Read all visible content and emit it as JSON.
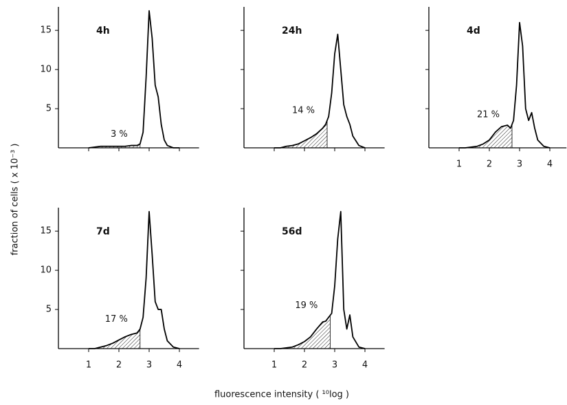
{
  "figure": {
    "y_label": "fraction of cells ( x 10⁻³ )",
    "x_label": "fluorescence intensity ( ¹⁰log )"
  },
  "chart_data": [
    {
      "type": "line",
      "title": "4h",
      "color": "#000000",
      "x": [
        1.0,
        1.2,
        1.4,
        1.6,
        1.8,
        2.0,
        2.2,
        2.4,
        2.6,
        2.7,
        2.8,
        2.9,
        3.0,
        3.1,
        3.2,
        3.3,
        3.4,
        3.5,
        3.6,
        3.8,
        4.0
      ],
      "values": [
        0,
        0.1,
        0.2,
        0.2,
        0.2,
        0.2,
        0.2,
        0.3,
        0.3,
        0.5,
        2,
        9,
        17.5,
        14,
        8,
        6.5,
        3,
        1,
        0.3,
        0,
        0
      ],
      "shaded": {
        "label": "3 %",
        "x_max": 2.7
      },
      "xlim": [
        0,
        4.65
      ],
      "ylim": [
        0,
        18
      ],
      "xticks": [
        1,
        2,
        3,
        4
      ],
      "yticks": [
        5,
        10,
        15
      ],
      "x_tick_labels": false,
      "y_tick_labels": true
    },
    {
      "type": "line",
      "title": "24h",
      "color": "#000000",
      "x": [
        1.0,
        1.2,
        1.4,
        1.6,
        1.8,
        2.0,
        2.2,
        2.4,
        2.6,
        2.7,
        2.8,
        2.9,
        3.0,
        3.1,
        3.2,
        3.3,
        3.4,
        3.5,
        3.6,
        3.8,
        4.0
      ],
      "values": [
        0,
        0,
        0.2,
        0.3,
        0.5,
        0.9,
        1.3,
        1.8,
        2.5,
        3,
        4,
        7,
        12,
        14.5,
        10,
        5.5,
        4,
        3,
        1.5,
        0.3,
        0
      ],
      "shaded": {
        "label": "14 %",
        "x_max": 2.75
      },
      "xlim": [
        0,
        4.65
      ],
      "ylim": [
        0,
        18
      ],
      "xticks": [
        1,
        2,
        3,
        4
      ],
      "yticks": [
        5,
        10,
        15
      ],
      "x_tick_labels": false,
      "y_tick_labels": false
    },
    {
      "type": "line",
      "title": "4d",
      "color": "#000000",
      "x": [
        1.0,
        1.2,
        1.4,
        1.6,
        1.8,
        2.0,
        2.2,
        2.4,
        2.6,
        2.7,
        2.8,
        2.9,
        3.0,
        3.1,
        3.2,
        3.3,
        3.4,
        3.5,
        3.6,
        3.8,
        4.0
      ],
      "values": [
        0,
        0,
        0.1,
        0.2,
        0.5,
        1.0,
        2.0,
        2.7,
        2.9,
        2.5,
        3.5,
        8,
        16,
        13,
        5,
        3.5,
        4.5,
        2.5,
        1,
        0.2,
        0
      ],
      "shaded": {
        "label": "21 %",
        "x_max": 2.75
      },
      "xlim": [
        0,
        4.55
      ],
      "ylim": [
        0,
        18
      ],
      "xticks": [
        1,
        2,
        3,
        4
      ],
      "yticks": [
        5,
        10,
        15
      ],
      "x_tick_labels": true,
      "y_tick_labels": false
    },
    {
      "type": "line",
      "title": "7d",
      "color": "#000000",
      "x": [
        1.0,
        1.2,
        1.4,
        1.6,
        1.8,
        2.0,
        2.2,
        2.4,
        2.6,
        2.7,
        2.8,
        2.9,
        3.0,
        3.1,
        3.2,
        3.3,
        3.4,
        3.5,
        3.6,
        3.8,
        4.0
      ],
      "values": [
        0,
        0,
        0.2,
        0.4,
        0.7,
        1.1,
        1.5,
        1.8,
        2.0,
        2.5,
        4,
        9,
        17.5,
        12,
        6,
        5,
        5,
        2.5,
        1,
        0.2,
        0
      ],
      "shaded": {
        "label": "17 %",
        "x_max": 2.7
      },
      "xlim": [
        0,
        4.65
      ],
      "ylim": [
        0,
        18
      ],
      "xticks": [
        1,
        2,
        3,
        4
      ],
      "yticks": [
        5,
        10,
        15
      ],
      "x_tick_labels": true,
      "y_tick_labels": true
    },
    {
      "type": "line",
      "title": "56d",
      "color": "#000000",
      "x": [
        1.0,
        1.2,
        1.4,
        1.6,
        1.8,
        2.0,
        2.2,
        2.4,
        2.6,
        2.7,
        2.8,
        2.9,
        3.0,
        3.1,
        3.2,
        3.3,
        3.4,
        3.5,
        3.6,
        3.8,
        4.0
      ],
      "values": [
        0,
        0,
        0.1,
        0.2,
        0.5,
        0.9,
        1.5,
        2.5,
        3.4,
        3.5,
        4,
        4.5,
        8,
        14,
        17.5,
        5,
        2.5,
        4.3,
        1.5,
        0.2,
        0
      ],
      "shaded": {
        "label": "19 %",
        "x_max": 2.85
      },
      "xlim": [
        0,
        4.65
      ],
      "ylim": [
        0,
        18
      ],
      "xticks": [
        1,
        2,
        3,
        4
      ],
      "yticks": [
        5,
        10,
        15
      ],
      "x_tick_labels": true,
      "y_tick_labels": false
    }
  ]
}
